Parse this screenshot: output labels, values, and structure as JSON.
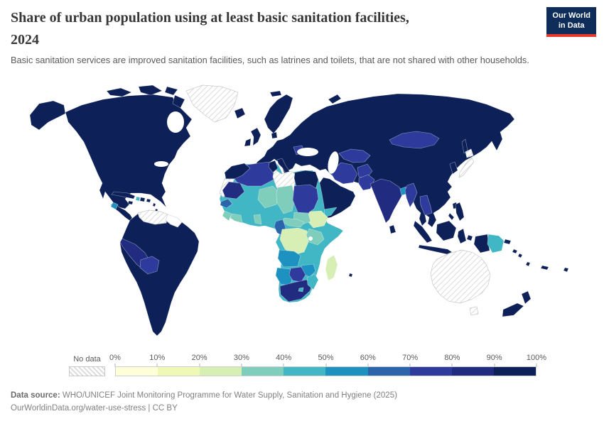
{
  "header": {
    "title_lines": [
      "Share of urban population using at least basic sanitation facilities,",
      "2024"
    ],
    "subtitle": "Basic sanitation services are improved sanitation facilities, such as latrines and toilets, that are not shared with other households."
  },
  "logo": {
    "line1": "Our World",
    "line2": "in Data"
  },
  "legend": {
    "no_data_label": "No data",
    "tick_labels": [
      "0%",
      "10%",
      "20%",
      "30%",
      "40%",
      "50%",
      "60%",
      "70%",
      "80%",
      "90%",
      "100%"
    ],
    "bin_colors": [
      "#feffd9",
      "#eff9b5",
      "#d7efb4",
      "#7fcdbb",
      "#41b6c4",
      "#1d91c0",
      "#2b64ab",
      "#2e3a9c",
      "#212c80",
      "#0d2158"
    ]
  },
  "footer": {
    "source_label": "Data source:",
    "source_text": " WHO/UNICEF Joint Monitoring Programme for Water Supply, Sanitation and Hygiene (2025)",
    "link_line": "OurWorldinData.org/water-use-stress | CC BY"
  },
  "chart_data": {
    "type": "choropleth_map",
    "title": "Share of urban population using at least basic sanitation facilities, 2024",
    "year": "2024",
    "unit": "% of urban population using at least basic sanitation facilities",
    "legend_position": "bottom",
    "bins": [
      {
        "range": "0-10%",
        "color": "#feffd9"
      },
      {
        "range": "10-20%",
        "color": "#eff9b5"
      },
      {
        "range": "20-30%",
        "color": "#d7efb4"
      },
      {
        "range": "30-40%",
        "color": "#7fcdbb"
      },
      {
        "range": "40-50%",
        "color": "#41b6c4"
      },
      {
        "range": "50-60%",
        "color": "#1d91c0"
      },
      {
        "range": "60-70%",
        "color": "#2b64ab"
      },
      {
        "range": "70-80%",
        "color": "#2e3a9c"
      },
      {
        "range": "80-90%",
        "color": "#212c80"
      },
      {
        "range": "90-100%",
        "color": "#0d2158"
      }
    ],
    "no_data": {
      "label": "No data",
      "style": "white with gray diagonal hatching"
    },
    "regions": {
      "north-america": {
        "label": "United States, Canada & Mexico",
        "bin": "90-100%",
        "color": "#0d2158"
      },
      "greenland": {
        "label": "Greenland",
        "bin": "No data",
        "color": "no-data"
      },
      "iceland": {
        "label": "Iceland",
        "bin": "90-100%",
        "color": "#0d2158"
      },
      "cuba": {
        "label": "Cuba",
        "bin": "90-100%",
        "color": "#0d2158"
      },
      "haiti": {
        "label": "Haiti",
        "bin": "40-50%",
        "color": "#41b6c4"
      },
      "dominican-republic": {
        "label": "Dominican Republic",
        "bin": "90-100%",
        "color": "#0d2158"
      },
      "jamaica": {
        "label": "Jamaica",
        "bin": "90-100%",
        "color": "#0d2158"
      },
      "puerto-rico": {
        "label": "Puerto Rico",
        "bin": "90-100%",
        "color": "#0d2158"
      },
      "lesser-antilles": {
        "label": "Lesser Antilles",
        "bin": "90-100%",
        "color": "#0d2158"
      },
      "trinidad": {
        "label": "Trinidad and Tobago",
        "bin": "90-100%",
        "color": "#0d2158"
      },
      "central-america": {
        "label": "Central America",
        "bin": "90-100%",
        "color": "#0d2158"
      },
      "guatemala": {
        "label": "Guatemala",
        "bin": "50-60%",
        "color": "#1d91c0"
      },
      "venezuela": {
        "label": "Venezuela",
        "bin": "No data",
        "color": "no-data"
      },
      "guyana-suriname": {
        "label": "Guyana & Suriname",
        "bin": "No data",
        "color": "#ffffff"
      },
      "south-america": {
        "label": "South America (most)",
        "bin": "90-100%",
        "color": "#0d2158"
      },
      "peru": {
        "label": "Peru",
        "bin": "80-90%",
        "color": "#212c80"
      },
      "bolivia": {
        "label": "Bolivia",
        "bin": "70-80%",
        "color": "#2e3a9c"
      },
      "uk": {
        "label": "United Kingdom",
        "bin": "90-100%",
        "color": "#0d2158"
      },
      "ireland": {
        "label": "Ireland",
        "bin": "90-100%",
        "color": "#0d2158"
      },
      "scandinavia": {
        "label": "Scandinavia",
        "bin": "90-100%",
        "color": "#0d2158"
      },
      "eurasia": {
        "label": "Europe, Russia, China, Turkey & most of Asia",
        "bin": "90-100%",
        "color": "#0d2158"
      },
      "italy": {
        "label": "Italy",
        "bin": "90-100%",
        "color": "#0d2158"
      },
      "southeast-europe": {
        "label": "Romania & Bulgaria",
        "bin": "70-80%",
        "color": "#2e3a9c"
      },
      "mongolia": {
        "label": "Mongolia",
        "bin": "70-80%",
        "color": "#2e3a9c"
      },
      "central-asia": {
        "label": "Central Asia",
        "bin": "70-80%",
        "color": "#2e3a9c"
      },
      "iran": {
        "label": "Iran",
        "bin": "70-80%",
        "color": "#2e3a9c"
      },
      "afghanistan": {
        "label": "Afghanistan",
        "bin": "70-80%",
        "color": "#2e3a9c"
      },
      "pakistan": {
        "label": "Pakistan",
        "bin": "70-80%",
        "color": "#2e3a9c"
      },
      "india": {
        "label": "India",
        "bin": "80-90%",
        "color": "#212c80"
      },
      "bangladesh": {
        "label": "Bangladesh",
        "bin": "50-60%",
        "color": "#1d91c0"
      },
      "myanmar": {
        "label": "Myanmar",
        "bin": "70-80%",
        "color": "#2e3a9c"
      },
      "laos-cambodia": {
        "label": "Laos & Cambodia",
        "bin": "70-80%",
        "color": "#2e3a9c"
      },
      "sri-lanka": {
        "label": "Sri Lanka",
        "bin": "90-100%",
        "color": "#0d2158"
      },
      "arabia": {
        "label": "Arabian Peninsula",
        "bin": "90-100%",
        "color": "#0d2158"
      },
      "yemen": {
        "label": "Yemen",
        "bin": "40-50%",
        "color": "#41b6c4"
      },
      "korea": {
        "label": "Korea",
        "bin": "90-100%",
        "color": "#0d2158"
      },
      "japan": {
        "label": "Japan",
        "bin": "No data",
        "color": "no-data"
      },
      "taiwan": {
        "label": "Taiwan",
        "bin": "90-100%",
        "color": "#0d2158"
      },
      "philippines": {
        "label": "Philippines",
        "bin": "90-100%",
        "color": "#0d2158"
      },
      "indonesia": {
        "label": "Indonesia",
        "bin": "90-100%",
        "color": "#0d2158"
      },
      "papua-new-guinea": {
        "label": "Papua New Guinea",
        "bin": "40-50%",
        "color": "#41b6c4"
      },
      "pacific-islands": {
        "label": "Pacific Islands",
        "bin": "90-100%",
        "color": "#0d2158"
      },
      "australia": {
        "label": "Australia",
        "bin": "No data",
        "color": "no-data"
      },
      "new-zealand": {
        "label": "New Zealand",
        "bin": "90-100%",
        "color": "#0d2158"
      },
      "africa-base": {
        "label": "Sub-Saharan Africa (Mali, Guinea, Ghana, Nigeria, Somalia, Tanzania, Zambia, Congo)",
        "bin": "40-50%",
        "color": "#41b6c4"
      },
      "morocco": {
        "label": "Morocco",
        "bin": "90-100%",
        "color": "#0d2158"
      },
      "western-sahara": {
        "label": "Western Sahara",
        "bin": "No data",
        "color": "no-data"
      },
      "algeria": {
        "label": "Algeria",
        "bin": "70-80%",
        "color": "#2e3a9c"
      },
      "tunisia": {
        "label": "Tunisia",
        "bin": "90-100%",
        "color": "#0d2158"
      },
      "libya": {
        "label": "Libya",
        "bin": "No data",
        "color": "no-data"
      },
      "egypt": {
        "label": "Egypt",
        "bin": "90-100%",
        "color": "#0d2158"
      },
      "mauritania": {
        "label": "Mauritania",
        "bin": "80-90%",
        "color": "#212c80"
      },
      "senegal": {
        "label": "Senegal",
        "bin": "60-70%",
        "color": "#2b64ab"
      },
      "niger": {
        "label": "Niger",
        "bin": "30-40%",
        "color": "#7fcdbb"
      },
      "chad": {
        "label": "Chad",
        "bin": "30-40%",
        "color": "#7fcdbb"
      },
      "sudan": {
        "label": "Sudan",
        "bin": "70-80%",
        "color": "#2e3a9c"
      },
      "ethiopia": {
        "label": "Ethiopia",
        "bin": "20-30%",
        "color": "#d7efb4"
      },
      "south-sudan": {
        "label": "South Sudan",
        "bin": "30-40%",
        "color": "#7fcdbb"
      },
      "central-african-republic": {
        "label": "Central African Republic",
        "bin": "30-40%",
        "color": "#7fcdbb"
      },
      "cameroon": {
        "label": "Cameroon",
        "bin": "60-70%",
        "color": "#2b64ab"
      },
      "sierra-leone-liberia": {
        "label": "Sierra Leone & Liberia",
        "bin": "30-40%",
        "color": "#7fcdbb"
      },
      "ivory-coast": {
        "label": "Cote d'Ivoire",
        "bin": "30-40%",
        "color": "#7fcdbb"
      },
      "togo-benin": {
        "label": "Togo & Benin",
        "bin": "30-40%",
        "color": "#7fcdbb"
      },
      "drc": {
        "label": "Democratic Republic of Congo",
        "bin": "20-30%",
        "color": "#d7efb4"
      },
      "uganda-kenya": {
        "label": "Uganda & Kenya",
        "bin": "30-40%",
        "color": "#7fcdbb"
      },
      "angola": {
        "label": "Angola",
        "bin": "50-60%",
        "color": "#1d91c0"
      },
      "zimbabwe": {
        "label": "Zimbabwe",
        "bin": "50-60%",
        "color": "#1d91c0"
      },
      "namibia": {
        "label": "Namibia",
        "bin": "50-60%",
        "color": "#1d91c0"
      },
      "botswana": {
        "label": "Botswana",
        "bin": "70-80%",
        "color": "#2e3a9c"
      },
      "south-africa": {
        "label": "South Africa",
        "bin": "80-90%",
        "color": "#212c80"
      },
      "mozambique": {
        "label": "Mozambique",
        "bin": "40-50%",
        "color": "#41b6c4"
      },
      "lesotho": {
        "label": "Lesotho",
        "bin": "40-50%",
        "color": "#41b6c4"
      },
      "madagascar": {
        "label": "Madagascar",
        "bin": "20-30%",
        "color": "#d7efb4"
      },
      "mauritius": {
        "label": "Mauritius",
        "bin": "90-100%",
        "color": "#0d2158"
      }
    }
  }
}
